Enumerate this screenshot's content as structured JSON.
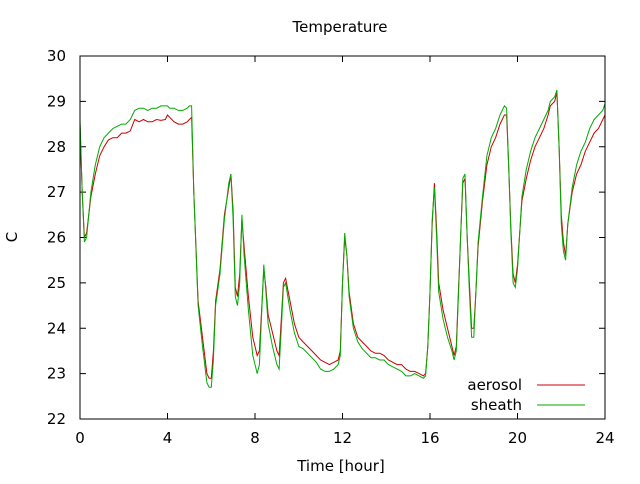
{
  "chart_data": {
    "type": "line",
    "title": "Temperature",
    "xlabel": "Time [hour]",
    "ylabel": "C",
    "xlim": [
      0,
      24
    ],
    "ylim": [
      22,
      30
    ],
    "xticks": [
      0,
      4,
      8,
      12,
      16,
      20,
      24
    ],
    "yticks": [
      22,
      23,
      24,
      25,
      26,
      27,
      28,
      29,
      30
    ],
    "grid": false,
    "legend_position": "bottom-right",
    "series": [
      {
        "name": "aerosol",
        "color": "#cc0000",
        "points": [
          [
            0.0,
            28.5
          ],
          [
            0.1,
            27.0
          ],
          [
            0.2,
            26.0
          ],
          [
            0.3,
            26.1
          ],
          [
            0.5,
            26.9
          ],
          [
            0.7,
            27.4
          ],
          [
            0.9,
            27.8
          ],
          [
            1.1,
            28.0
          ],
          [
            1.3,
            28.15
          ],
          [
            1.5,
            28.2
          ],
          [
            1.7,
            28.2
          ],
          [
            1.9,
            28.3
          ],
          [
            2.1,
            28.3
          ],
          [
            2.3,
            28.35
          ],
          [
            2.5,
            28.6
          ],
          [
            2.7,
            28.55
          ],
          [
            2.9,
            28.6
          ],
          [
            3.1,
            28.55
          ],
          [
            3.3,
            28.55
          ],
          [
            3.5,
            28.6
          ],
          [
            3.7,
            28.58
          ],
          [
            3.9,
            28.6
          ],
          [
            4.0,
            28.7
          ],
          [
            4.1,
            28.65
          ],
          [
            4.3,
            28.55
          ],
          [
            4.5,
            28.5
          ],
          [
            4.7,
            28.5
          ],
          [
            4.9,
            28.55
          ],
          [
            5.0,
            28.6
          ],
          [
            5.1,
            28.65
          ],
          [
            5.2,
            27.0
          ],
          [
            5.4,
            24.6
          ],
          [
            5.6,
            23.8
          ],
          [
            5.8,
            23.0
          ],
          [
            5.9,
            22.9
          ],
          [
            6.0,
            22.9
          ],
          [
            6.1,
            23.5
          ],
          [
            6.2,
            24.6
          ],
          [
            6.4,
            25.3
          ],
          [
            6.6,
            26.5
          ],
          [
            6.8,
            27.1
          ],
          [
            6.9,
            27.4
          ],
          [
            7.0,
            26.6
          ],
          [
            7.1,
            24.9
          ],
          [
            7.2,
            24.7
          ],
          [
            7.3,
            25.2
          ],
          [
            7.4,
            26.4
          ],
          [
            7.5,
            25.8
          ],
          [
            7.7,
            24.7
          ],
          [
            7.9,
            23.8
          ],
          [
            8.1,
            23.4
          ],
          [
            8.2,
            23.5
          ],
          [
            8.3,
            24.4
          ],
          [
            8.4,
            25.3
          ],
          [
            8.5,
            24.9
          ],
          [
            8.6,
            24.3
          ],
          [
            8.8,
            23.9
          ],
          [
            9.0,
            23.5
          ],
          [
            9.1,
            23.4
          ],
          [
            9.2,
            24.2
          ],
          [
            9.3,
            25.0
          ],
          [
            9.4,
            25.1
          ],
          [
            9.6,
            24.6
          ],
          [
            9.8,
            24.1
          ],
          [
            10.0,
            23.8
          ],
          [
            10.2,
            23.7
          ],
          [
            10.4,
            23.6
          ],
          [
            10.6,
            23.5
          ],
          [
            10.8,
            23.4
          ],
          [
            11.0,
            23.3
          ],
          [
            11.2,
            23.25
          ],
          [
            11.4,
            23.2
          ],
          [
            11.6,
            23.25
          ],
          [
            11.8,
            23.3
          ],
          [
            11.9,
            23.5
          ],
          [
            12.0,
            25.0
          ],
          [
            12.1,
            26.0
          ],
          [
            12.2,
            25.6
          ],
          [
            12.3,
            24.8
          ],
          [
            12.5,
            24.1
          ],
          [
            12.7,
            23.8
          ],
          [
            12.9,
            23.7
          ],
          [
            13.1,
            23.6
          ],
          [
            13.3,
            23.5
          ],
          [
            13.5,
            23.45
          ],
          [
            13.7,
            23.45
          ],
          [
            13.9,
            23.4
          ],
          [
            14.1,
            23.3
          ],
          [
            14.3,
            23.25
          ],
          [
            14.5,
            23.2
          ],
          [
            14.7,
            23.2
          ],
          [
            14.9,
            23.1
          ],
          [
            15.1,
            23.05
          ],
          [
            15.3,
            23.05
          ],
          [
            15.5,
            23.0
          ],
          [
            15.7,
            22.95
          ],
          [
            15.8,
            23.0
          ],
          [
            15.9,
            23.6
          ],
          [
            16.0,
            24.8
          ],
          [
            16.1,
            26.3
          ],
          [
            16.2,
            27.2
          ],
          [
            16.3,
            26.2
          ],
          [
            16.4,
            25.0
          ],
          [
            16.6,
            24.4
          ],
          [
            16.8,
            24.0
          ],
          [
            17.0,
            23.6
          ],
          [
            17.1,
            23.4
          ],
          [
            17.2,
            23.6
          ],
          [
            17.3,
            24.8
          ],
          [
            17.4,
            26.0
          ],
          [
            17.5,
            27.2
          ],
          [
            17.6,
            27.3
          ],
          [
            17.7,
            26.0
          ],
          [
            17.8,
            25.0
          ],
          [
            17.9,
            24.0
          ],
          [
            18.0,
            24.0
          ],
          [
            18.1,
            24.8
          ],
          [
            18.2,
            25.8
          ],
          [
            18.4,
            26.8
          ],
          [
            18.6,
            27.6
          ],
          [
            18.8,
            28.0
          ],
          [
            19.0,
            28.2
          ],
          [
            19.2,
            28.5
          ],
          [
            19.4,
            28.7
          ],
          [
            19.5,
            28.7
          ],
          [
            19.6,
            27.5
          ],
          [
            19.7,
            26.2
          ],
          [
            19.8,
            25.2
          ],
          [
            19.9,
            25.0
          ],
          [
            20.0,
            25.4
          ],
          [
            20.2,
            26.8
          ],
          [
            20.4,
            27.3
          ],
          [
            20.6,
            27.7
          ],
          [
            20.8,
            28.0
          ],
          [
            21.0,
            28.2
          ],
          [
            21.2,
            28.4
          ],
          [
            21.4,
            28.7
          ],
          [
            21.5,
            28.9
          ],
          [
            21.7,
            29.0
          ],
          [
            21.8,
            29.2
          ],
          [
            21.9,
            28.0
          ],
          [
            22.0,
            26.5
          ],
          [
            22.1,
            25.9
          ],
          [
            22.2,
            25.6
          ],
          [
            22.3,
            26.3
          ],
          [
            22.5,
            27.0
          ],
          [
            22.7,
            27.4
          ],
          [
            22.9,
            27.6
          ],
          [
            23.1,
            27.9
          ],
          [
            23.3,
            28.1
          ],
          [
            23.5,
            28.3
          ],
          [
            23.7,
            28.4
          ],
          [
            23.9,
            28.6
          ],
          [
            24.0,
            28.7
          ]
        ]
      },
      {
        "name": "sheath",
        "color": "#00aa00",
        "points": [
          [
            0.0,
            28.6
          ],
          [
            0.1,
            27.0
          ],
          [
            0.2,
            25.9
          ],
          [
            0.3,
            26.0
          ],
          [
            0.5,
            27.0
          ],
          [
            0.7,
            27.6
          ],
          [
            0.9,
            28.0
          ],
          [
            1.1,
            28.2
          ],
          [
            1.3,
            28.3
          ],
          [
            1.5,
            28.4
          ],
          [
            1.7,
            28.45
          ],
          [
            1.9,
            28.5
          ],
          [
            2.1,
            28.5
          ],
          [
            2.3,
            28.6
          ],
          [
            2.5,
            28.8
          ],
          [
            2.7,
            28.85
          ],
          [
            2.9,
            28.85
          ],
          [
            3.1,
            28.8
          ],
          [
            3.3,
            28.85
          ],
          [
            3.5,
            28.85
          ],
          [
            3.7,
            28.9
          ],
          [
            3.9,
            28.9
          ],
          [
            4.0,
            28.9
          ],
          [
            4.1,
            28.85
          ],
          [
            4.3,
            28.85
          ],
          [
            4.5,
            28.8
          ],
          [
            4.7,
            28.8
          ],
          [
            4.9,
            28.85
          ],
          [
            5.0,
            28.9
          ],
          [
            5.1,
            28.9
          ],
          [
            5.2,
            27.0
          ],
          [
            5.4,
            24.5
          ],
          [
            5.6,
            23.6
          ],
          [
            5.8,
            22.8
          ],
          [
            5.9,
            22.7
          ],
          [
            6.0,
            22.7
          ],
          [
            6.1,
            23.3
          ],
          [
            6.2,
            24.5
          ],
          [
            6.4,
            25.2
          ],
          [
            6.6,
            26.4
          ],
          [
            6.8,
            27.2
          ],
          [
            6.9,
            27.4
          ],
          [
            7.0,
            26.4
          ],
          [
            7.1,
            24.7
          ],
          [
            7.2,
            24.5
          ],
          [
            7.3,
            25.0
          ],
          [
            7.4,
            26.5
          ],
          [
            7.5,
            25.6
          ],
          [
            7.7,
            24.4
          ],
          [
            7.9,
            23.4
          ],
          [
            8.1,
            23.0
          ],
          [
            8.2,
            23.2
          ],
          [
            8.3,
            24.3
          ],
          [
            8.4,
            25.4
          ],
          [
            8.5,
            24.8
          ],
          [
            8.6,
            24.1
          ],
          [
            8.8,
            23.6
          ],
          [
            9.0,
            23.2
          ],
          [
            9.1,
            23.1
          ],
          [
            9.2,
            24.0
          ],
          [
            9.3,
            24.9
          ],
          [
            9.4,
            25.0
          ],
          [
            9.6,
            24.4
          ],
          [
            9.8,
            23.9
          ],
          [
            10.0,
            23.6
          ],
          [
            10.2,
            23.55
          ],
          [
            10.4,
            23.45
          ],
          [
            10.6,
            23.35
          ],
          [
            10.8,
            23.25
          ],
          [
            11.0,
            23.1
          ],
          [
            11.2,
            23.05
          ],
          [
            11.4,
            23.05
          ],
          [
            11.6,
            23.1
          ],
          [
            11.8,
            23.2
          ],
          [
            11.9,
            23.4
          ],
          [
            12.0,
            25.0
          ],
          [
            12.1,
            26.1
          ],
          [
            12.2,
            25.6
          ],
          [
            12.3,
            24.7
          ],
          [
            12.5,
            24.0
          ],
          [
            12.7,
            23.7
          ],
          [
            12.9,
            23.55
          ],
          [
            13.1,
            23.45
          ],
          [
            13.3,
            23.35
          ],
          [
            13.5,
            23.35
          ],
          [
            13.7,
            23.3
          ],
          [
            13.9,
            23.3
          ],
          [
            14.1,
            23.2
          ],
          [
            14.3,
            23.15
          ],
          [
            14.5,
            23.1
          ],
          [
            14.7,
            23.05
          ],
          [
            14.9,
            22.95
          ],
          [
            15.1,
            22.95
          ],
          [
            15.3,
            23.0
          ],
          [
            15.5,
            22.95
          ],
          [
            15.7,
            22.9
          ],
          [
            15.8,
            22.95
          ],
          [
            15.9,
            23.6
          ],
          [
            16.0,
            24.8
          ],
          [
            16.1,
            26.4
          ],
          [
            16.2,
            27.1
          ],
          [
            16.3,
            26.0
          ],
          [
            16.4,
            24.8
          ],
          [
            16.6,
            24.2
          ],
          [
            16.8,
            23.8
          ],
          [
            17.0,
            23.5
          ],
          [
            17.1,
            23.3
          ],
          [
            17.2,
            23.5
          ],
          [
            17.3,
            24.7
          ],
          [
            17.4,
            26.0
          ],
          [
            17.5,
            27.3
          ],
          [
            17.6,
            27.4
          ],
          [
            17.7,
            26.0
          ],
          [
            17.8,
            24.8
          ],
          [
            17.9,
            23.8
          ],
          [
            18.0,
            23.8
          ],
          [
            18.1,
            24.8
          ],
          [
            18.2,
            25.9
          ],
          [
            18.4,
            26.9
          ],
          [
            18.6,
            27.8
          ],
          [
            18.8,
            28.2
          ],
          [
            19.0,
            28.4
          ],
          [
            19.2,
            28.7
          ],
          [
            19.4,
            28.9
          ],
          [
            19.5,
            28.85
          ],
          [
            19.6,
            27.5
          ],
          [
            19.7,
            26.1
          ],
          [
            19.8,
            25.0
          ],
          [
            19.9,
            24.9
          ],
          [
            20.0,
            25.3
          ],
          [
            20.2,
            26.9
          ],
          [
            20.4,
            27.5
          ],
          [
            20.6,
            27.9
          ],
          [
            20.8,
            28.2
          ],
          [
            21.0,
            28.4
          ],
          [
            21.2,
            28.6
          ],
          [
            21.4,
            28.8
          ],
          [
            21.5,
            29.0
          ],
          [
            21.7,
            29.1
          ],
          [
            21.8,
            29.25
          ],
          [
            21.9,
            28.0
          ],
          [
            22.0,
            26.3
          ],
          [
            22.1,
            25.7
          ],
          [
            22.2,
            25.5
          ],
          [
            22.3,
            26.3
          ],
          [
            22.5,
            27.1
          ],
          [
            22.7,
            27.6
          ],
          [
            22.9,
            27.9
          ],
          [
            23.1,
            28.1
          ],
          [
            23.3,
            28.4
          ],
          [
            23.5,
            28.6
          ],
          [
            23.7,
            28.7
          ],
          [
            23.9,
            28.8
          ],
          [
            24.0,
            28.95
          ]
        ]
      }
    ]
  }
}
